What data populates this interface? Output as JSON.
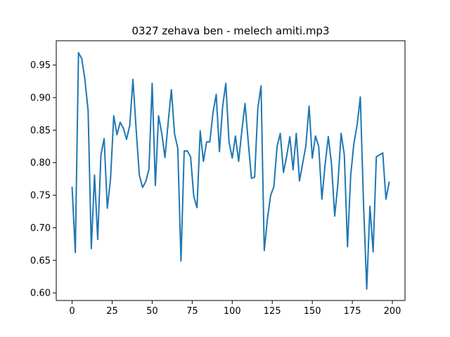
{
  "chart_data": {
    "type": "line",
    "title": "0327 zehava ben - melech amiti.mp3",
    "xlabel": "",
    "ylabel": "",
    "xlim": [
      -9.9,
      207.9
    ],
    "ylim": [
      0.5883,
      0.9874
    ],
    "xticks": [
      0,
      25,
      50,
      75,
      100,
      125,
      150,
      175,
      200
    ],
    "yticks": [
      0.6,
      0.65,
      0.7,
      0.75,
      0.8,
      0.85,
      0.9,
      0.95
    ],
    "xtick_labels": [
      "0",
      "25",
      "50",
      "75",
      "100",
      "125",
      "150",
      "175",
      "200"
    ],
    "ytick_labels": [
      "0.60",
      "0.65",
      "0.70",
      "0.75",
      "0.80",
      "0.85",
      "0.90",
      "0.95"
    ],
    "grid": false,
    "legend": false,
    "series": [
      {
        "color": "#1f77b4",
        "x": [
          0,
          2,
          4,
          6,
          8,
          10,
          12,
          14,
          16,
          18,
          20,
          22,
          24,
          26,
          28,
          30,
          32,
          34,
          36,
          38,
          40,
          42,
          44,
          46,
          48,
          50,
          52,
          54,
          56,
          58,
          60,
          62,
          64,
          66,
          68,
          70,
          72,
          74,
          76,
          78,
          80,
          82,
          84,
          86,
          88,
          90,
          92,
          94,
          96,
          98,
          100,
          102,
          104,
          106,
          108,
          110,
          112,
          114,
          116,
          118,
          120,
          122,
          124,
          126,
          128,
          130,
          132,
          134,
          136,
          138,
          140,
          142,
          144,
          146,
          148,
          150,
          152,
          154,
          156,
          158,
          160,
          162,
          164,
          166,
          168,
          170,
          172,
          174,
          176,
          178,
          180,
          182,
          184,
          186,
          188,
          190,
          192,
          194,
          196,
          198
        ],
        "values": [
          0.762,
          0.662,
          0.969,
          0.96,
          0.928,
          0.88,
          0.668,
          0.781,
          0.682,
          0.812,
          0.837,
          0.73,
          0.775,
          0.872,
          0.843,
          0.862,
          0.853,
          0.836,
          0.857,
          0.928,
          0.851,
          0.781,
          0.762,
          0.771,
          0.79,
          0.922,
          0.765,
          0.872,
          0.845,
          0.808,
          0.862,
          0.912,
          0.844,
          0.822,
          0.649,
          0.818,
          0.818,
          0.809,
          0.748,
          0.731,
          0.849,
          0.802,
          0.832,
          0.832,
          0.877,
          0.905,
          0.817,
          0.886,
          0.922,
          0.832,
          0.807,
          0.841,
          0.802,
          0.849,
          0.891,
          0.832,
          0.776,
          0.778,
          0.884,
          0.918,
          0.665,
          0.714,
          0.75,
          0.763,
          0.825,
          0.845,
          0.785,
          0.81,
          0.84,
          0.789,
          0.845,
          0.772,
          0.799,
          0.826,
          0.887,
          0.807,
          0.841,
          0.825,
          0.744,
          0.797,
          0.84,
          0.798,
          0.718,
          0.768,
          0.845,
          0.812,
          0.671,
          0.781,
          0.83,
          0.858,
          0.901,
          0.737,
          0.606,
          0.733,
          0.663,
          0.809,
          0.812,
          0.815,
          0.744,
          0.77
        ]
      }
    ]
  }
}
